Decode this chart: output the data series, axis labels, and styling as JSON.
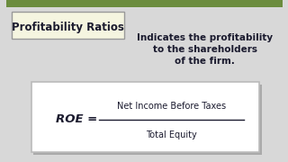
{
  "bg_color": "#d8d8d8",
  "top_strip_color": "#6b8c3e",
  "title_box_text": "Profitability Ratios",
  "title_box_bg": "#f5f5e0",
  "title_box_border": "#999999",
  "right_text_lines": [
    "Indicates the profitability",
    "to the shareholders",
    "of the firm."
  ],
  "roe_label": "ROE =",
  "numerator": "Net Income Before Taxes",
  "denominator": "Total Equity",
  "formula_box_bg": "#ffffff",
  "formula_box_border": "#bbbbbb",
  "formula_box_shadow": "#aaaaaa",
  "text_color": "#1a1a2e",
  "right_text_color": "#1a1a2e"
}
